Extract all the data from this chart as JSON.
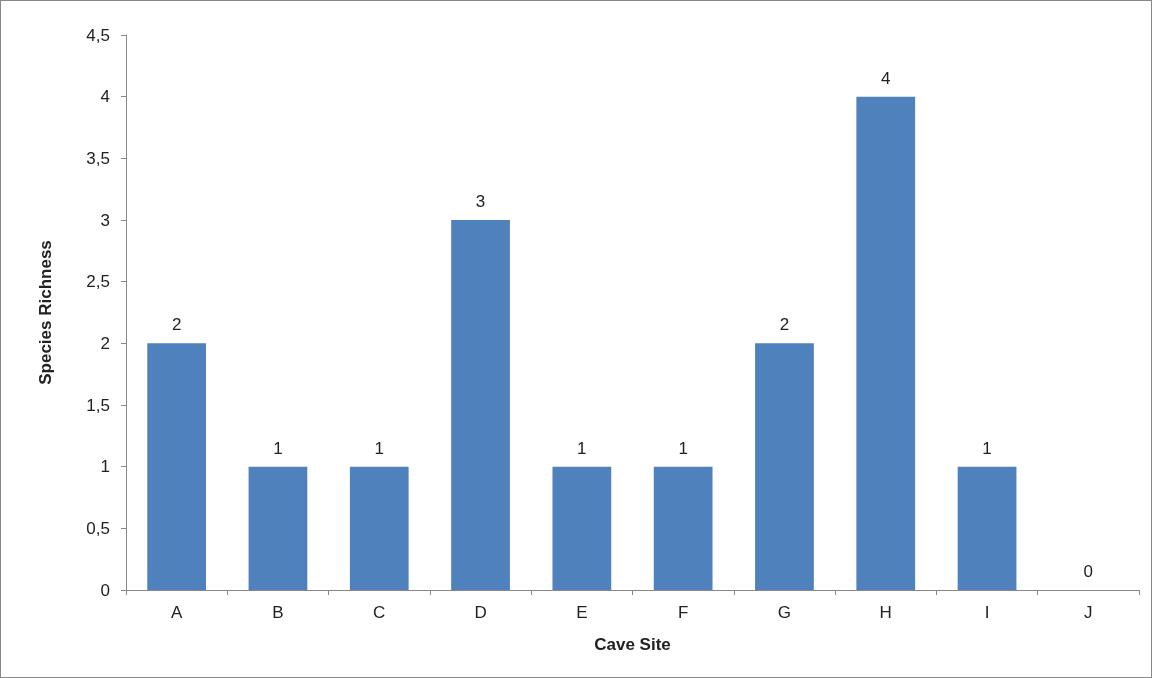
{
  "chart_data": {
    "type": "bar",
    "xlabel": "Cave Site",
    "ylabel": "Species Richness",
    "categories": [
      "A",
      "B",
      "C",
      "D",
      "E",
      "F",
      "G",
      "H",
      "I",
      "J"
    ],
    "values": [
      2,
      1,
      1,
      3,
      1,
      1,
      2,
      4,
      1,
      0
    ],
    "color": "#4f81bd",
    "ylim": [
      0,
      4.5
    ],
    "yticks": [
      0,
      {
        "value": 0.5,
        "label": "0,5"
      },
      1,
      {
        "value": 1.5,
        "label": "1,5"
      },
      2,
      {
        "value": 2.5,
        "label": "2,5"
      },
      3,
      {
        "value": 3.5,
        "label": "3,5"
      },
      4,
      {
        "value": 4.5,
        "label": "4,5"
      }
    ],
    "grid": false,
    "data_labels": true
  }
}
